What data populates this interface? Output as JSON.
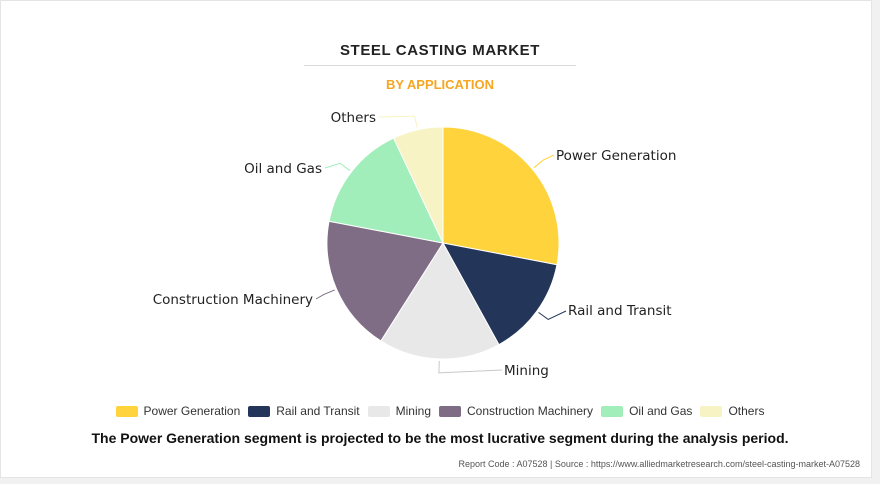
{
  "header": {
    "title": "STEEL CASTING MARKET",
    "subtitle": "BY APPLICATION"
  },
  "chart_data": {
    "type": "pie",
    "title": "STEEL CASTING MARKET",
    "subtitle": "BY APPLICATION",
    "start_angle_deg": 0,
    "direction": "clockwise",
    "slices": [
      {
        "label": "Power Generation",
        "value": 28,
        "color": "#ffd33c"
      },
      {
        "label": "Rail and Transit",
        "value": 14,
        "color": "#23365a"
      },
      {
        "label": "Mining",
        "value": 17,
        "color": "#e8e8e8"
      },
      {
        "label": "Construction Machinery",
        "value": 19,
        "color": "#7e6d84"
      },
      {
        "label": "Oil and Gas",
        "value": 15,
        "color": "#a2eebb"
      },
      {
        "label": "Others",
        "value": 7,
        "color": "#f8f3c4"
      }
    ],
    "legend_position": "bottom"
  },
  "footer": {
    "summary": "The Power Generation segment is projected to be the most lucrative segment during the analysis period.",
    "source": "Report Code : A07528  |  Source : https://www.alliedmarketresearch.com/steel-casting-market-A07528"
  }
}
